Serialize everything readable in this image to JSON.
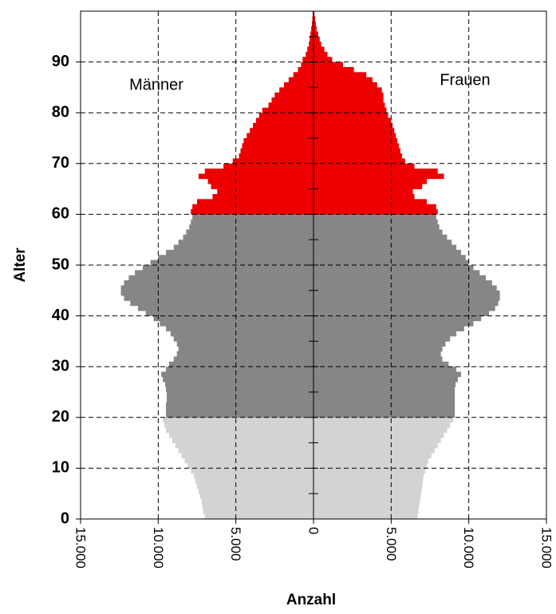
{
  "chart_data": {
    "type": "pyramid",
    "xlabel": "Anzahl",
    "ylabel": "Alter",
    "xlim": [
      -15000,
      15000
    ],
    "xticks": [
      {
        "value": -15000,
        "label": "15.000"
      },
      {
        "value": -10000,
        "label": "10.000"
      },
      {
        "value": -5000,
        "label": "5.000"
      },
      0,
      {
        "value": 5000,
        "label": "5.000"
      },
      {
        "value": 10000,
        "label": "10.000"
      },
      {
        "value": 15000,
        "label": "15.000"
      }
    ],
    "ylim": [
      0,
      100
    ],
    "yticks": [
      0,
      10,
      20,
      30,
      40,
      50,
      60,
      70,
      80,
      90
    ],
    "y_minor_ticks": [
      5,
      15,
      25,
      35,
      45,
      55,
      65,
      75,
      85,
      95
    ],
    "grid": true,
    "age_groups": [
      {
        "start": 0,
        "color": "#d3d3d3"
      },
      {
        "start": 20,
        "color": "#868686"
      },
      {
        "start": 60,
        "color": "#ee0000"
      }
    ],
    "y": [
      0,
      1,
      2,
      3,
      4,
      5,
      6,
      7,
      8,
      9,
      10,
      11,
      12,
      13,
      14,
      15,
      16,
      17,
      18,
      19,
      20,
      21,
      22,
      23,
      24,
      25,
      26,
      27,
      28,
      29,
      30,
      31,
      32,
      33,
      34,
      35,
      36,
      37,
      38,
      39,
      40,
      41,
      42,
      43,
      44,
      45,
      46,
      47,
      48,
      49,
      50,
      51,
      52,
      53,
      54,
      55,
      56,
      57,
      58,
      59,
      60,
      61,
      62,
      63,
      64,
      65,
      66,
      67,
      68,
      69,
      70,
      71,
      72,
      73,
      74,
      75,
      76,
      77,
      78,
      79,
      80,
      81,
      82,
      83,
      84,
      85,
      86,
      87,
      88,
      89,
      90,
      91,
      92,
      93,
      94,
      95,
      96,
      97,
      98,
      99
    ],
    "series": [
      {
        "name": "Männer",
        "side": "left",
        "values": [
          7000,
          7100,
          7150,
          7200,
          7300,
          7400,
          7500,
          7600,
          7700,
          7900,
          8100,
          8300,
          8500,
          8700,
          8900,
          9100,
          9300,
          9500,
          9600,
          9700,
          9500,
          9500,
          9500,
          9450,
          9450,
          9500,
          9550,
          9700,
          9800,
          9500,
          9300,
          9000,
          8800,
          8700,
          8800,
          9000,
          9200,
          9500,
          9900,
          10300,
          10800,
          11300,
          11800,
          12200,
          12400,
          12400,
          12200,
          11900,
          11500,
          11000,
          10500,
          10000,
          9500,
          9000,
          8700,
          8400,
          8200,
          8000,
          7900,
          7800,
          7900,
          7800,
          7500,
          6500,
          6200,
          6600,
          6800,
          7400,
          7000,
          5800,
          5200,
          4800,
          4700,
          4600,
          4500,
          4300,
          4100,
          3900,
          3700,
          3500,
          3300,
          2900,
          2700,
          2500,
          2200,
          1900,
          1600,
          1300,
          1000,
          800,
          700,
          500,
          400,
          300,
          250,
          200,
          150,
          100,
          70,
          50
        ]
      },
      {
        "name": "Frauen",
        "side": "right",
        "values": [
          6700,
          6750,
          6800,
          6850,
          6900,
          6950,
          7000,
          7050,
          7100,
          7200,
          7300,
          7400,
          7600,
          7800,
          8000,
          8200,
          8400,
          8600,
          8800,
          9000,
          9100,
          9100,
          9100,
          9100,
          9100,
          9100,
          9150,
          9300,
          9500,
          9200,
          8700,
          8300,
          8200,
          8300,
          8500,
          8800,
          9200,
          9700,
          10300,
          10800,
          11300,
          11700,
          11900,
          12000,
          12000,
          11800,
          11500,
          11100,
          10700,
          10300,
          10000,
          9800,
          9500,
          9200,
          8900,
          8600,
          8300,
          8100,
          8000,
          7900,
          8000,
          7900,
          7300,
          6500,
          6400,
          7000,
          7300,
          8400,
          8000,
          6500,
          5900,
          5700,
          5600,
          5500,
          5400,
          5300,
          5200,
          5100,
          5000,
          4800,
          4700,
          4600,
          4500,
          4500,
          4400,
          4100,
          3800,
          3400,
          2600,
          1900,
          1200,
          900,
          700,
          500,
          400,
          300,
          200,
          150,
          100,
          60
        ]
      }
    ]
  }
}
